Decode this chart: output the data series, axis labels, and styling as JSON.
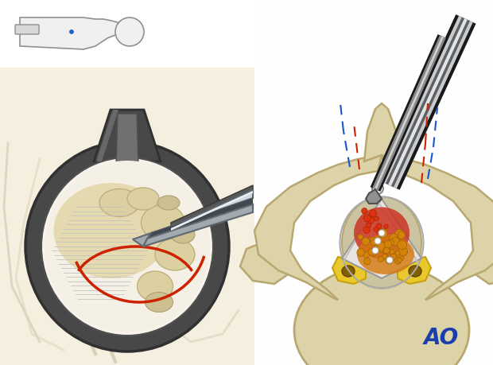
{
  "bg_color": "#FFFFFF",
  "ao_text": "AO",
  "ao_color": "#1a3faa",
  "ao_fontsize": 20,
  "figure_size": [
    6.2,
    4.59
  ],
  "dpi": 100,
  "skin_light": "#f5efe0",
  "skin_mid": "#ede3ca",
  "skin_line": "#c8b888",
  "bone_fill": "#ddd3a8",
  "bone_line": "#b8a870",
  "tube_dark": "#484848",
  "tube_mid": "#606060",
  "tube_light": "#888888",
  "tube_rim": "#303030",
  "tool_light": "#d0d8e0",
  "tool_mid": "#a0aab0",
  "tool_dark": "#606870",
  "tool_shadow": "#404850",
  "yellow_lig": "#e8c82a",
  "yellow_lig_dark": "#c8a010",
  "red_accent": "#cc2200",
  "red_light": "#ee4422",
  "blue_dashed": "#1a55cc",
  "red_dashed": "#cc2200",
  "white": "#ffffff",
  "off_white": "#f5f0e8",
  "gray_line": "#808080",
  "orange_dot": "#d4830a",
  "red_dot": "#cc3322"
}
